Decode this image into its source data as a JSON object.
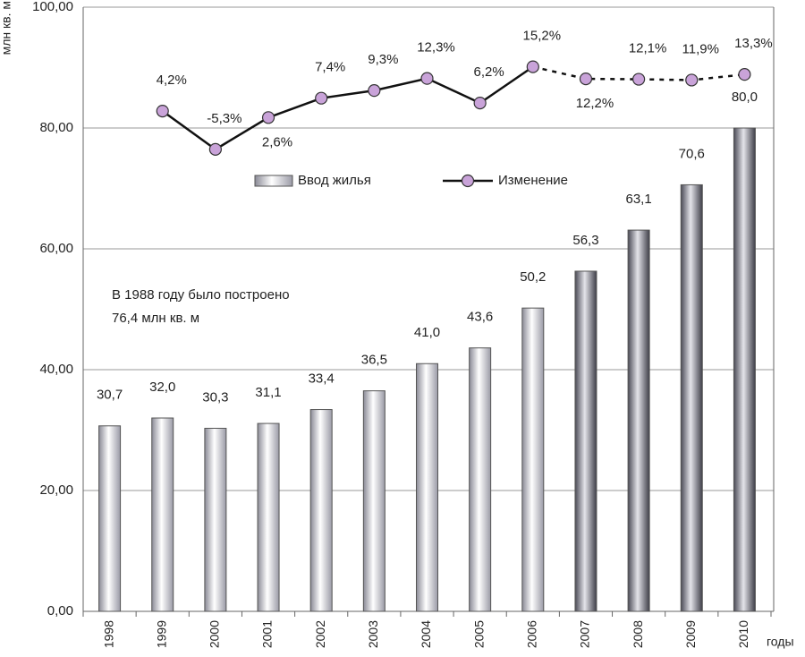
{
  "chart_data": {
    "type": "bar",
    "y_label": "млн кв. м",
    "x_label": "годы",
    "annotation": [
      "В 1988 году было построено",
      "76,4 млн кв. м"
    ],
    "categories": [
      "1998",
      "1999",
      "2000",
      "2001",
      "2002",
      "2003",
      "2004",
      "2005",
      "2006",
      "2007",
      "2008",
      "2009",
      "2010"
    ],
    "forecast_from": "2007",
    "ylim": [
      0,
      100
    ],
    "yticks": [
      {
        "value": 0,
        "label": "0,00"
      },
      {
        "value": 20,
        "label": "20,00"
      },
      {
        "value": 40,
        "label": "40,00"
      },
      {
        "value": 60,
        "label": "60,00"
      },
      {
        "value": 80,
        "label": "80,00"
      },
      {
        "value": 100,
        "label": "100,00"
      }
    ],
    "y2lim": [
      -120,
      30
    ],
    "grid": true,
    "series": [
      {
        "name": "Ввод жилья",
        "type": "bar",
        "color": "#c8c8d0",
        "values": [
          30.7,
          32.0,
          30.3,
          31.1,
          33.4,
          36.5,
          41.0,
          43.6,
          50.2,
          56.3,
          63.1,
          70.6,
          80.0
        ],
        "value_labels": [
          "30,7",
          "32,0",
          "30,3",
          "31,1",
          "33,4",
          "36,5",
          "41,0",
          "43,6",
          "50,2",
          "56,3",
          "63,1",
          "70,6",
          "80,0"
        ]
      },
      {
        "name": "Изменение",
        "type": "line",
        "axis": "y2",
        "color": "#c9a3d9",
        "values": [
          null,
          4.2,
          -5.3,
          2.6,
          7.4,
          9.3,
          12.3,
          6.2,
          15.2,
          12.2,
          12.1,
          11.9,
          13.3
        ],
        "value_labels": [
          null,
          "4,2%",
          "-5,3%",
          "2,6%",
          "7,4%",
          "9,3%",
          "12,3%",
          "6,2%",
          "15,2%",
          "12,2%",
          "12,1%",
          "11,9%",
          "13,3%"
        ]
      }
    ]
  }
}
